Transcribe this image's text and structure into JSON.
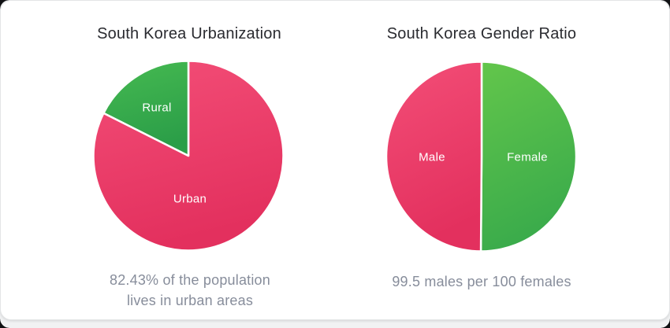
{
  "page": {
    "background_color": "#F1F2F3",
    "card_background_color": "#FFFFFF"
  },
  "text_colors": {
    "title": "#2A2B30",
    "caption": "#878D9B",
    "slice_label": "#FFFFFF"
  },
  "chart_data": [
    {
      "type": "pie",
      "title": "South Korea Urbanization",
      "start_angle_deg": 0,
      "direction": "clockwise",
      "divider_color": "#FFFFFF",
      "slices": [
        {
          "label": "Urban",
          "value": 82.43,
          "color_light": "#F34E77",
          "color_dark": "#E3305E"
        },
        {
          "label": "Rural",
          "value": 17.57,
          "color_light": "#46BA51",
          "color_dark": "#2B9E48"
        }
      ],
      "caption_lines": [
        "82.43% of the population",
        "lives in urban areas"
      ]
    },
    {
      "type": "pie",
      "title": "South Korea Gender Ratio",
      "start_angle_deg": 0,
      "direction": "clockwise",
      "divider_color": "#FFFFFF",
      "slices": [
        {
          "label": "Female",
          "value": 100,
          "color_light": "#63C64B",
          "color_dark": "#3AAB4B"
        },
        {
          "label": "Male",
          "value": 99.5,
          "color_light": "#F34E77",
          "color_dark": "#E3305E"
        }
      ],
      "caption_lines": [
        "99.5 males per 100 females"
      ]
    }
  ]
}
